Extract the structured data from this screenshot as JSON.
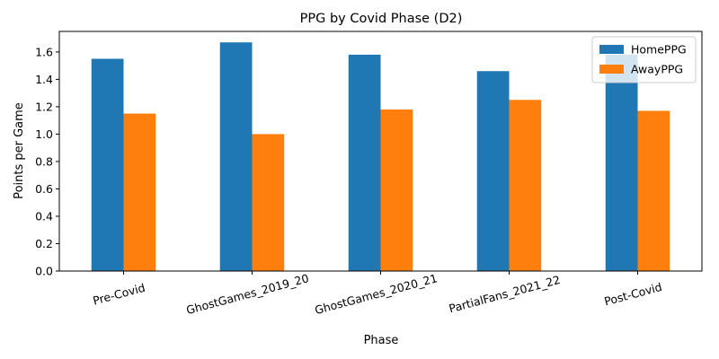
{
  "chart_data": {
    "type": "bar",
    "title": "PPG by Covid Phase (D2)",
    "xlabel": "Phase",
    "ylabel": "Points per Game",
    "categories": [
      "Pre-Covid",
      "GhostGames_2019_20",
      "GhostGames_2020_21",
      "PartialFans_2021_22",
      "Post-Covid"
    ],
    "series": [
      {
        "name": "HomePPG",
        "color": "#1f77b4",
        "values": [
          1.55,
          1.67,
          1.58,
          1.46,
          1.58
        ]
      },
      {
        "name": "AwayPPG",
        "color": "#ff7f0e",
        "values": [
          1.15,
          1.0,
          1.18,
          1.25,
          1.17
        ]
      }
    ],
    "ylim": [
      0,
      1.75
    ],
    "yticks": [
      0.0,
      0.2,
      0.4,
      0.6,
      0.8,
      1.0,
      1.2,
      1.4,
      1.6
    ],
    "ytick_labels": [
      "0.0",
      "0.2",
      "0.4",
      "0.6",
      "0.8",
      "1.0",
      "1.2",
      "1.4",
      "1.6"
    ],
    "grid": false,
    "legend_position": "top-right"
  }
}
